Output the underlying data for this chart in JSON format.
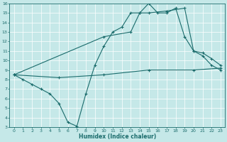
{
  "title": "",
  "xlabel": "Humidex (Indice chaleur)",
  "ylabel": "",
  "bg_color": "#c5e8e8",
  "line_color": "#1a6b6b",
  "grid_color": "#b0d8d8",
  "xlim": [
    -0.5,
    23.5
  ],
  "ylim": [
    3,
    16
  ],
  "xticks": [
    0,
    1,
    2,
    3,
    4,
    5,
    6,
    7,
    8,
    9,
    10,
    11,
    12,
    13,
    14,
    15,
    16,
    17,
    18,
    19,
    20,
    21,
    22,
    23
  ],
  "yticks": [
    3,
    4,
    5,
    6,
    7,
    8,
    9,
    10,
    11,
    12,
    13,
    14,
    15,
    16
  ],
  "line1_x": [
    0,
    1,
    2,
    3,
    4,
    5,
    6,
    7,
    8,
    9,
    10,
    11,
    12,
    13,
    14,
    15,
    16,
    17,
    18,
    19,
    20,
    21,
    22,
    23
  ],
  "line1_y": [
    8.5,
    8.0,
    7.5,
    7.0,
    6.5,
    5.5,
    3.5,
    3.1,
    6.5,
    9.5,
    11.5,
    13.0,
    13.5,
    15.0,
    15.0,
    16.0,
    15.0,
    15.0,
    15.5,
    12.5,
    11.0,
    10.5,
    9.5,
    9.0
  ],
  "line2_x": [
    0,
    10,
    13,
    14,
    15,
    17,
    19,
    20,
    21,
    22,
    23
  ],
  "line2_y": [
    8.5,
    12.5,
    13.0,
    15.0,
    15.0,
    15.2,
    15.5,
    11.0,
    10.8,
    10.2,
    9.5
  ],
  "line3_x": [
    0,
    5,
    10,
    15,
    20,
    23
  ],
  "line3_y": [
    8.5,
    8.2,
    8.5,
    9.0,
    9.0,
    9.2
  ],
  "marker": "+",
  "markersize": 3,
  "linewidth": 0.8
}
